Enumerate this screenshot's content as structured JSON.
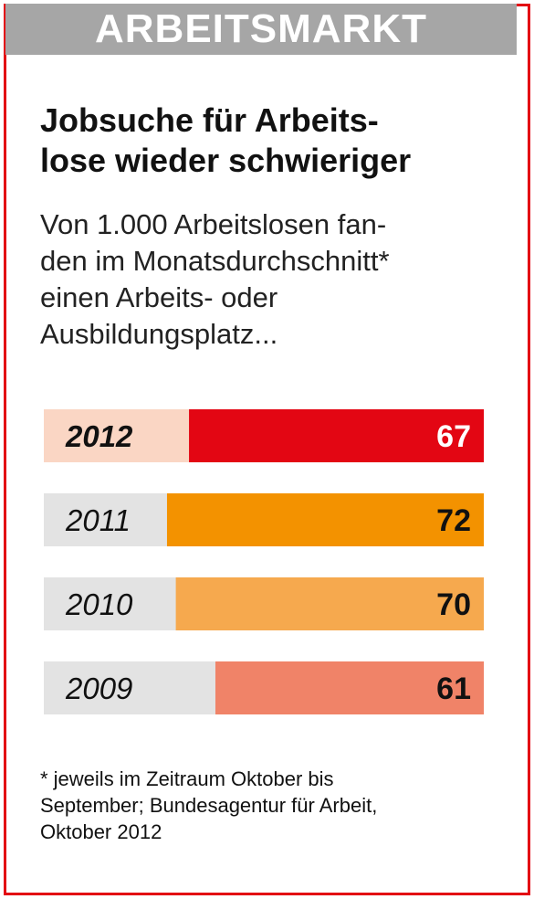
{
  "header": {
    "label": "ARBEITSMARKT"
  },
  "title": [
    "Jobsuche für Arbeits-",
    "lose wieder schwieriger"
  ],
  "subtitle": [
    "Von 1.000 Arbeitslosen fan-",
    "den im Monatsdurchschnitt*",
    "einen Arbeits- oder",
    "Ausbildungsplatz..."
  ],
  "footnote": [
    "* jeweils im Zeitraum Oktober bis",
    "September; Bundesagentur für Arbeit,",
    "Oktober 2012"
  ],
  "colors": {
    "frame": "#e30613",
    "header_bg": "#a6a6a6"
  },
  "chart_data": {
    "type": "bar",
    "orientation": "horizontal",
    "categories": [
      "2012",
      "2011",
      "2010",
      "2009"
    ],
    "values": [
      67,
      72,
      70,
      61
    ],
    "value_labels": [
      "67",
      "72",
      "70",
      "61"
    ],
    "highlight": "2012",
    "bar_colors": [
      "#e30613",
      "#f39200",
      "#f6a94e",
      "#f08368"
    ],
    "track_colors": [
      "#fad6c4",
      "#e3e3e3",
      "#e3e3e3",
      "#e3e3e3"
    ],
    "label_colors": [
      "#ffffff",
      "#111111",
      "#111111",
      "#111111"
    ],
    "xlim": [
      0,
      100
    ],
    "grid": false
  }
}
